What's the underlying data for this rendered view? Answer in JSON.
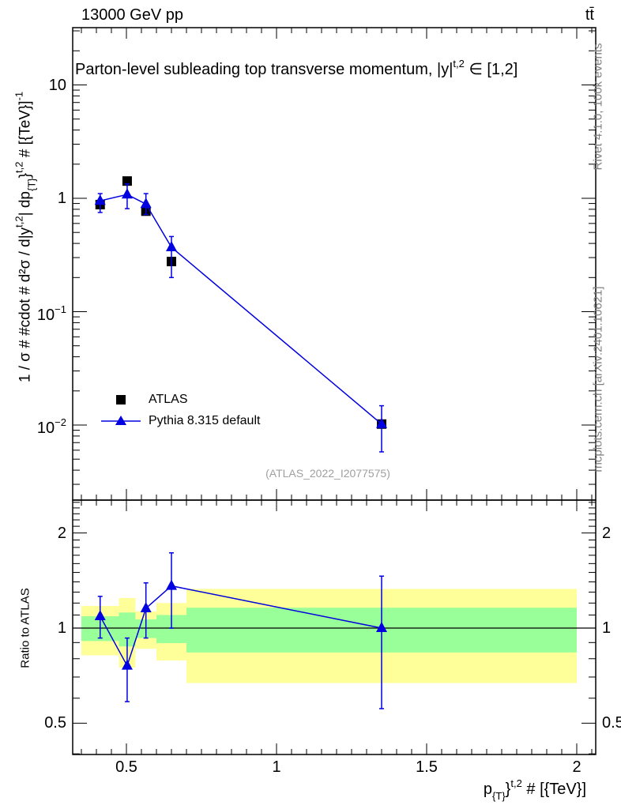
{
  "chart_data": [
    {
      "type": "line",
      "title": "Parton-level subleading top transverse momentum, |y^{t,2}| ∈ [1,2]",
      "title_main": "Parton-level subleading top transverse momentum, ",
      "title_var": "|y|",
      "title_var_sup": "t,2",
      "title_range": "∈ [1,2]",
      "header_left": "13000 GeV pp",
      "header_right": "tt̄",
      "ylabel": "1 / σ # #cdot # d²σ / d|y^{t,2}| dp_{T}^{t,2} # [{TeV}]^{-1}",
      "ylabel_text": "1 / σ # #cdot # d²σ / d|y",
      "ylabel_sup1": "t,2",
      "ylabel_mid": "| dp",
      "ylabel_sub": "{T}",
      "ylabel_sup2": "}",
      "ylabel_sup3": "t,2",
      "ylabel_end": " # [{TeV}]",
      "ylabel_sup4": "-1",
      "yscale": "log",
      "ylim": [
        0.0022,
        32
      ],
      "xlim": [
        0.321,
        2.063
      ],
      "yticks": [
        {
          "value": 10,
          "label": "10",
          "exp": ""
        },
        {
          "value": 1,
          "label": "1",
          "exp": ""
        },
        {
          "value": 0.1,
          "label": "10",
          "exp": "−1"
        },
        {
          "value": 0.01,
          "label": "10",
          "exp": "−2"
        }
      ],
      "legend_position": "bottom-left",
      "series": [
        {
          "name": "ATLAS",
          "color": "#000000",
          "marker": "square",
          "x": [
            0.4125,
            0.5025,
            0.565,
            0.65,
            1.35
          ],
          "y": [
            0.88,
            1.42,
            0.77,
            0.277,
            0.0102
          ],
          "xerr_bins": [
            [
              0.35,
              0.475
            ],
            [
              0.475,
              0.53
            ],
            [
              0.53,
              0.6
            ],
            [
              0.6,
              0.7
            ],
            [
              0.7,
              2.0
            ]
          ]
        },
        {
          "name": "Pythia 8.315 default",
          "color": "#0000e0",
          "marker": "triangle",
          "x": [
            0.4125,
            0.5025,
            0.565,
            0.65,
            1.35
          ],
          "y": [
            0.95,
            1.08,
            0.89,
            0.37,
            0.0102
          ],
          "yerr_low": [
            0.75,
            0.81,
            0.72,
            0.2,
            0.0058
          ],
          "yerr_high": [
            1.1,
            1.34,
            1.1,
            0.46,
            0.0148
          ]
        }
      ],
      "watermark": "(ATLAS_2022_I2077575)",
      "side_text_top": "Rivet 4.1.0,  100k events",
      "side_text_bottom": "mcplots.cern.ch [arXiv:2401.10621]"
    },
    {
      "type": "line",
      "ylabel": "Ratio to ATLAS",
      "xlabel": "p_{T}^{t,2} # [{TeV}]",
      "xlabel_p": "p",
      "xlabel_sub": "{T}",
      "xlabel_sup": "t,2",
      "xlabel_end": " # [{TeV}]",
      "yscale": "log",
      "ylim": [
        0.4,
        2.54
      ],
      "xlim": [
        0.321,
        2.063
      ],
      "xticks": [
        {
          "value": 0.5,
          "label": "0.5"
        },
        {
          "value": 1,
          "label": "1"
        },
        {
          "value": 1.5,
          "label": "1.5"
        },
        {
          "value": 2,
          "label": "2"
        }
      ],
      "yticks": [
        {
          "value": 2,
          "label": "2"
        },
        {
          "value": 1,
          "label": "1"
        },
        {
          "value": 0.5,
          "label": "0.5"
        }
      ],
      "bands": {
        "bins": [
          [
            0.35,
            0.475
          ],
          [
            0.475,
            0.53
          ],
          [
            0.53,
            0.6
          ],
          [
            0.6,
            0.7
          ],
          [
            0.7,
            2.0
          ]
        ],
        "inner": {
          "color": "#99ff99",
          "low": [
            0.91,
            0.875,
            0.93,
            0.896,
            0.837
          ],
          "high": [
            1.09,
            1.12,
            1.065,
            1.1,
            1.16
          ]
        },
        "outer": {
          "color": "#ffff99",
          "low": [
            0.82,
            0.75,
            0.86,
            0.79,
            0.67
          ],
          "high": [
            1.175,
            1.245,
            1.13,
            1.2,
            1.33
          ]
        }
      },
      "series": [
        {
          "name": "Pythia 8.315 default / ATLAS",
          "color": "#0000e0",
          "x": [
            0.4125,
            0.5025,
            0.565,
            0.65,
            1.35
          ],
          "y": [
            1.09,
            0.76,
            1.155,
            1.36,
            1.0
          ],
          "yerr_low": [
            0.93,
            0.585,
            0.93,
            1.0,
            0.556
          ],
          "yerr_high": [
            1.26,
            0.93,
            1.39,
            1.73,
            1.46
          ]
        }
      ]
    }
  ]
}
